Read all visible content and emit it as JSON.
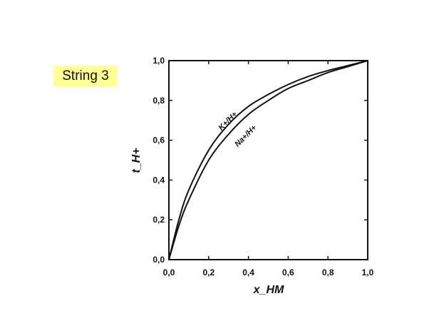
{
  "label": "String 3",
  "chart_data": {
    "type": "line",
    "xlabel": "x_HM",
    "ylabel": "t_H+",
    "xlim": [
      0,
      1
    ],
    "ylim": [
      0,
      1
    ],
    "xticks": [
      "0,0",
      "0,2",
      "0,4",
      "0,6",
      "0,8",
      "1,0"
    ],
    "yticks": [
      "0,0",
      "0,2",
      "0,4",
      "0,6",
      "0,8",
      "1,0"
    ],
    "grid": false,
    "x": [
      0,
      0.05,
      0.1,
      0.2,
      0.3,
      0.4,
      0.5,
      0.6,
      0.7,
      0.8,
      0.9,
      1.0
    ],
    "series": [
      {
        "name": "K+/H+",
        "values": [
          0,
          0.2,
          0.35,
          0.55,
          0.68,
          0.77,
          0.83,
          0.88,
          0.92,
          0.95,
          0.975,
          1.0
        ]
      },
      {
        "name": "Na+/H+",
        "values": [
          0,
          0.17,
          0.3,
          0.5,
          0.63,
          0.73,
          0.8,
          0.86,
          0.9,
          0.94,
          0.97,
          1.0
        ]
      }
    ]
  }
}
